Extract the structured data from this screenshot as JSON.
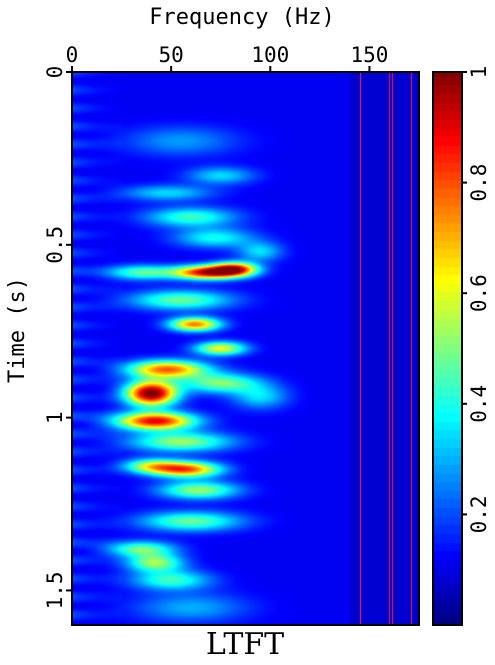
{
  "chart_data": {
    "type": "heatmap",
    "title": "",
    "caption": "LTFT",
    "xlabel": "Frequency (Hz)",
    "ylabel": "Time (s)",
    "xlim": [
      0,
      175
    ],
    "ylim": [
      0,
      1.6
    ],
    "x_axis_position": "top",
    "y_axis_inverted": true,
    "x_ticks": [
      0,
      50,
      100,
      150
    ],
    "x_tick_labels": [
      "0",
      "50",
      "100",
      "150"
    ],
    "y_ticks": [
      0,
      0.5,
      1,
      1.5
    ],
    "y_tick_labels": [
      "0",
      "0.5",
      "1",
      "1.5"
    ],
    "colorbar": {
      "range": [
        0,
        1
      ],
      "ticks": [
        0.2,
        0.4,
        0.6,
        0.8,
        1
      ],
      "tick_labels": [
        "0.2",
        "0.4",
        "0.6",
        "0.8",
        "1"
      ],
      "colormap": "jet",
      "colors": [
        "#000080",
        "#0000ff",
        "#00ffff",
        "#ffff00",
        "#ff0000",
        "#800000"
      ],
      "background_color": "#00007f"
    },
    "blobs": [
      {
        "t": 0.93,
        "f": 40,
        "st": 0.025,
        "sf": 9,
        "a": 1.0
      },
      {
        "t": 0.86,
        "f": 48,
        "st": 0.018,
        "sf": 14,
        "a": 0.72
      },
      {
        "t": 1.01,
        "f": 42,
        "st": 0.018,
        "sf": 14,
        "a": 0.85
      },
      {
        "t": 0.9,
        "f": 75,
        "st": 0.02,
        "sf": 14,
        "a": 0.42
      },
      {
        "t": 0.58,
        "f": 68,
        "st": 0.014,
        "sf": 12,
        "a": 0.85
      },
      {
        "t": 0.57,
        "f": 82,
        "st": 0.014,
        "sf": 8,
        "a": 0.75
      },
      {
        "t": 0.58,
        "f": 35,
        "st": 0.015,
        "sf": 12,
        "a": 0.38
      },
      {
        "t": 0.73,
        "f": 62,
        "st": 0.014,
        "sf": 9,
        "a": 0.7
      },
      {
        "t": 0.8,
        "f": 75,
        "st": 0.014,
        "sf": 9,
        "a": 0.55
      },
      {
        "t": 1.15,
        "f": 58,
        "st": 0.016,
        "sf": 12,
        "a": 0.72
      },
      {
        "t": 1.14,
        "f": 40,
        "st": 0.015,
        "sf": 10,
        "a": 0.45
      },
      {
        "t": 1.21,
        "f": 64,
        "st": 0.018,
        "sf": 14,
        "a": 0.45
      },
      {
        "t": 0.66,
        "f": 55,
        "st": 0.02,
        "sf": 18,
        "a": 0.4
      },
      {
        "t": 1.07,
        "f": 55,
        "st": 0.02,
        "sf": 18,
        "a": 0.45
      },
      {
        "t": 1.3,
        "f": 60,
        "st": 0.02,
        "sf": 18,
        "a": 0.4
      },
      {
        "t": 1.38,
        "f": 35,
        "st": 0.016,
        "sf": 12,
        "a": 0.4
      },
      {
        "t": 1.42,
        "f": 42,
        "st": 0.018,
        "sf": 10,
        "a": 0.45
      },
      {
        "t": 1.47,
        "f": 50,
        "st": 0.02,
        "sf": 14,
        "a": 0.35
      },
      {
        "t": 0.42,
        "f": 60,
        "st": 0.02,
        "sf": 16,
        "a": 0.35
      },
      {
        "t": 0.48,
        "f": 72,
        "st": 0.02,
        "sf": 14,
        "a": 0.3
      },
      {
        "t": 0.35,
        "f": 48,
        "st": 0.016,
        "sf": 16,
        "a": 0.25
      },
      {
        "t": 0.3,
        "f": 75,
        "st": 0.018,
        "sf": 12,
        "a": 0.25
      },
      {
        "t": 0.52,
        "f": 95,
        "st": 0.02,
        "sf": 8,
        "a": 0.25
      },
      {
        "t": 0.94,
        "f": 95,
        "st": 0.025,
        "sf": 10,
        "a": 0.25
      },
      {
        "t": 0.2,
        "f": 55,
        "st": 0.03,
        "sf": 20,
        "a": 0.18
      },
      {
        "t": 1.55,
        "f": 60,
        "st": 0.03,
        "sf": 20,
        "a": 0.2
      }
    ],
    "vertical_lines": [
      {
        "f": 145,
        "color": "#ff3030",
        "t0": 0.0,
        "t1": 1.6
      },
      {
        "f": 160,
        "color": "#ff2020",
        "t0": 0.0,
        "t1": 1.6
      },
      {
        "f": 161.5,
        "color": "#ff2020",
        "t0": 0.0,
        "t1": 1.6
      },
      {
        "f": 171,
        "color": "#ff2020",
        "t0": 0.0,
        "t1": 1.6
      }
    ]
  }
}
